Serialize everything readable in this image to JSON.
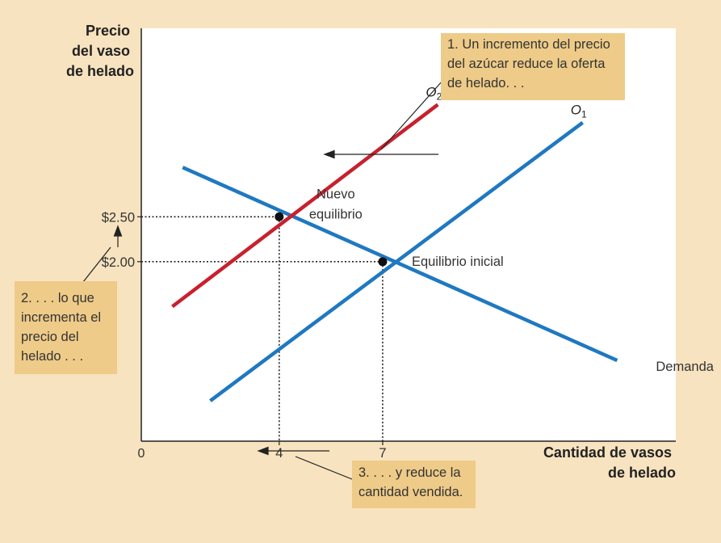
{
  "chart_data": {
    "type": "line",
    "ylabel_lines": [
      "Precio",
      "del vaso",
      "de helado"
    ],
    "xlabel_lines": [
      "Cantidad de vasos",
      "de helado"
    ],
    "origin_label": "0",
    "x_ticks": [
      {
        "value": 4,
        "label": "4"
      },
      {
        "value": 7,
        "label": "7"
      }
    ],
    "y_ticks": [
      {
        "value": 2.5,
        "label": "$2.50"
      },
      {
        "value": 2.0,
        "label": "$2.00"
      }
    ],
    "xlim": [
      0,
      15.5
    ],
    "ylim": [
      0,
      4.6
    ],
    "grid": false,
    "series": [
      {
        "name": "Demanda",
        "label": "Demanda",
        "color": "#1f78c1",
        "x": [
          1.2,
          13.8
        ],
        "y": [
          3.05,
          0.9
        ]
      },
      {
        "name": "O1",
        "label": "O",
        "label_sub": "1",
        "color": "#1f78c1",
        "x": [
          2.0,
          12.8
        ],
        "y": [
          0.45,
          3.55
        ]
      },
      {
        "name": "O2",
        "label": "O",
        "label_sub": "2",
        "color": "#c8202e",
        "x": [
          0.9,
          8.6
        ],
        "y": [
          1.5,
          3.75
        ]
      }
    ],
    "points": [
      {
        "name": "Nuevo equilibrio",
        "x": 4,
        "y": 2.5,
        "label_lines": [
          "Nuevo",
          "equilibrio"
        ]
      },
      {
        "name": "Equilibrio inicial",
        "x": 7,
        "y": 2.0,
        "label_lines": [
          "Equilibrio inicial"
        ]
      }
    ]
  },
  "callouts": {
    "one": [
      "1. Un incremento del precio",
      "del azúcar reduce la oferta",
      "de helado. . ."
    ],
    "two": [
      "2. . . . lo que",
      "incrementa el",
      "precio del",
      "helado . . ."
    ],
    "three": [
      "3. . . . y reduce la",
      "cantidad vendida."
    ]
  },
  "colors": {
    "background": "#f7e3bf",
    "plot_area": "#ffffff",
    "callout": "#eecb88",
    "demand": "#1f78c1",
    "supply": "#1f78c1",
    "supply_shifted": "#c8202e"
  }
}
